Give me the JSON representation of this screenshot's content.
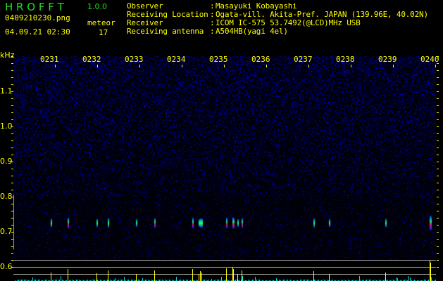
{
  "header": {
    "app_title": "H R O F F T",
    "version": "1.0.0",
    "filename": "0409210230.png",
    "datetime": "04.09.21 02:30",
    "meteor_label": "meteor",
    "meteor_count": "17"
  },
  "info": [
    {
      "key": "Observer",
      "value": "Masayuki Kobayashi"
    },
    {
      "key": "Receiving Location",
      "value": "Ogata-vill. Akita-Pref. JAPAN (139.96E, 40.02N)"
    },
    {
      "key": "Receiver",
      "value": "ICOM IC-575 53.7492(@LCD)MHz USB"
    },
    {
      "key": "Receiving antenna",
      "value": "A504HB(yagi 4el)"
    }
  ],
  "colors": {
    "text": "#ffff00",
    "title": "#22dd22",
    "noise": "#0000ff",
    "baseline": "#00e0e0",
    "spike": "#ffff00",
    "grid": "#9a9a9a"
  },
  "chart_data": {
    "type": "heatmap",
    "ylabel": "kHz",
    "ylim": [
      0.6,
      1.2
    ],
    "y_ticks": [
      "1.1",
      "1.0",
      "0.9",
      "0.8",
      "0.7",
      "0.6"
    ],
    "x_ticks": [
      "0231",
      "0232",
      "0233",
      "0234",
      "0235",
      "0236",
      "0237",
      "0238",
      "0239",
      "0240"
    ],
    "xlim_minutes": [
      0,
      10
    ],
    "echo_frequency_khz": 0.725,
    "echoes": [
      {
        "t": 0.88,
        "level": 0.4
      },
      {
        "t": 1.28,
        "level": 0.6
      },
      {
        "t": 1.97,
        "level": 0.37
      },
      {
        "t": 2.23,
        "level": 0.5
      },
      {
        "t": 2.9,
        "level": 0.33
      },
      {
        "t": 3.33,
        "level": 0.53
      },
      {
        "t": 4.23,
        "level": 0.6
      },
      {
        "t": 4.38,
        "level": 0.33
      },
      {
        "t": 4.42,
        "level": 0.47
      },
      {
        "t": 4.45,
        "level": 0.43
      },
      {
        "t": 5.03,
        "level": 0.63
      },
      {
        "t": 5.18,
        "level": 0.7
      },
      {
        "t": 5.2,
        "level": 0.57
      },
      {
        "t": 5.3,
        "level": 0.33
      },
      {
        "t": 5.4,
        "level": 0.53
      },
      {
        "t": 7.1,
        "level": 0.47
      },
      {
        "t": 7.47,
        "level": 0.33
      },
      {
        "t": 8.8,
        "level": 0.4
      },
      {
        "t": 9.85,
        "level": 1.0
      },
      {
        "t": 9.87,
        "level": 0.9
      }
    ]
  }
}
